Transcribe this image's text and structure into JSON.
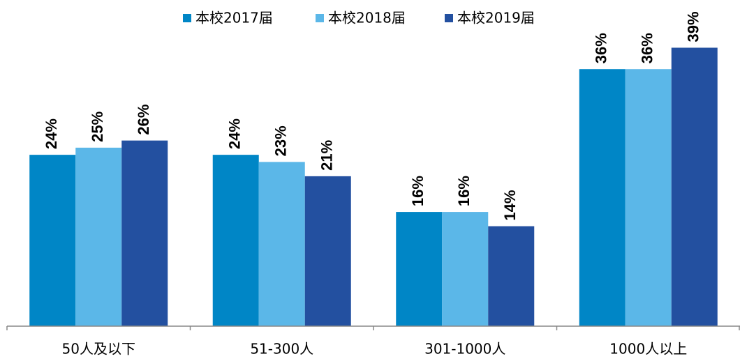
{
  "chart_data": {
    "type": "bar",
    "categories": [
      "50人及以下",
      "51-300人",
      "301-1000人",
      "1000人以上"
    ],
    "series": [
      {
        "name": "本校2017届",
        "color": "#0086c6",
        "values": [
          24,
          24,
          16,
          36
        ],
        "value_labels": [
          "24%",
          "24%",
          "16%",
          "36%"
        ]
      },
      {
        "name": "本校2018届",
        "color": "#5bb7e8",
        "values": [
          25,
          23,
          16,
          36
        ],
        "value_labels": [
          "25%",
          "23%",
          "16%",
          "36%"
        ]
      },
      {
        "name": "本校2019届",
        "color": "#2350a0",
        "values": [
          26,
          21,
          14,
          39
        ],
        "value_labels": [
          "26%",
          "21%",
          "14%",
          "39%"
        ]
      }
    ],
    "ylim": [
      0,
      45
    ]
  }
}
